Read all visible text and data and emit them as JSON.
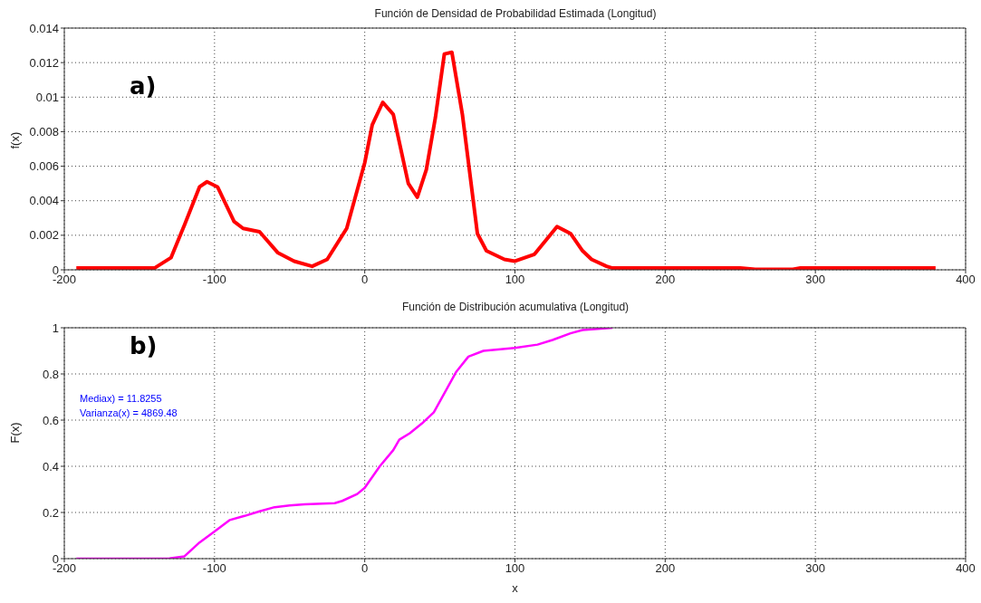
{
  "chart_data": [
    {
      "type": "line",
      "title": "Función de Densidad de Probabilidad Estimada (Longitud)",
      "ylabel": "f(x)",
      "annotations": [
        "a)"
      ],
      "color": "#ff0000",
      "grid": true,
      "xlim": [
        -200,
        400
      ],
      "xticks": [
        -200,
        -100,
        0,
        100,
        200,
        300,
        400
      ],
      "ylim": [
        0,
        0.014
      ],
      "yticks": [
        0,
        0.002,
        0.004,
        0.006,
        0.008,
        0.01,
        0.012,
        0.014
      ],
      "x": [
        -192,
        -150,
        -140,
        -129,
        -120,
        -110,
        -105,
        -98,
        -87,
        -81,
        -70,
        -58,
        -47,
        -35,
        -25,
        -12,
        0,
        5,
        12,
        19,
        29,
        35,
        41,
        47,
        53,
        58,
        65,
        75,
        81,
        93,
        100,
        113,
        128,
        137,
        145,
        151,
        161,
        165,
        175,
        250,
        260,
        285,
        290,
        380
      ],
      "values": [
        0.0001,
        0.0001,
        0.0001,
        0.0007,
        0.0026,
        0.0048,
        0.0051,
        0.0048,
        0.0028,
        0.0024,
        0.0022,
        0.001,
        0.0005,
        0.0002,
        0.0006,
        0.0024,
        0.0062,
        0.0084,
        0.0097,
        0.009,
        0.005,
        0.0042,
        0.0058,
        0.0088,
        0.0125,
        0.0126,
        0.009,
        0.0021,
        0.0011,
        0.0006,
        0.0005,
        0.0009,
        0.0025,
        0.0021,
        0.0011,
        0.0006,
        0.0002,
        0.0001,
        0.0001,
        0.0001,
        3e-05,
        3e-05,
        0.0001,
        0.0001
      ]
    },
    {
      "type": "line",
      "title": "Función de Distribución acumulativa (Longitud)",
      "xlabel": "x",
      "ylabel": "F(x)",
      "annotations": [
        "b)",
        "Mediax) = 11.8255",
        "Varianza(x) = 4869.48"
      ],
      "color": "#ff00ff",
      "grid": true,
      "xlim": [
        -200,
        400
      ],
      "xticks": [
        -200,
        -100,
        0,
        100,
        200,
        300,
        400
      ],
      "ylim": [
        0,
        1
      ],
      "yticks": [
        0,
        0.2,
        0.4,
        0.6,
        0.8,
        1
      ],
      "x": [
        -192,
        -130,
        -120,
        -110,
        -100,
        -90,
        -80,
        -70,
        -60,
        -50,
        -40,
        -20,
        -15,
        -5,
        0,
        10,
        19,
        23,
        30,
        38,
        46,
        55,
        61,
        69,
        79,
        100,
        115,
        125,
        137,
        145,
        165
      ],
      "values": [
        0,
        0.001,
        0.01,
        0.07,
        0.118,
        0.167,
        0.185,
        0.205,
        0.223,
        0.23,
        0.235,
        0.24,
        0.25,
        0.28,
        0.307,
        0.4,
        0.47,
        0.515,
        0.543,
        0.585,
        0.634,
        0.74,
        0.81,
        0.875,
        0.9,
        0.913,
        0.927,
        0.947,
        0.976,
        0.99,
        1
      ]
    }
  ]
}
